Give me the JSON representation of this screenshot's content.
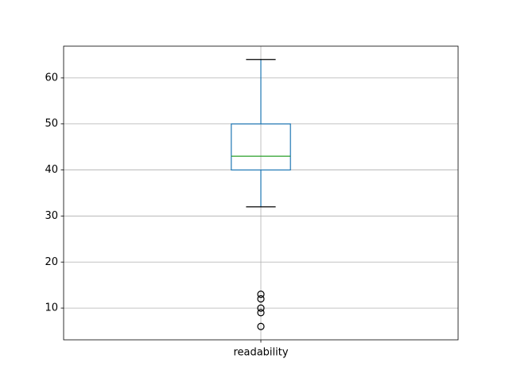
{
  "chart_data": {
    "type": "box",
    "categories": [
      "readability"
    ],
    "boxes": [
      {
        "whislo": 32,
        "q1": 40,
        "med": 43,
        "q3": 50,
        "whishi": 64,
        "fliers": [
          13,
          12,
          10,
          9,
          6
        ]
      }
    ],
    "box_color": "#1f77b4",
    "median_color": "#2ca02c",
    "cap_color": "#000000",
    "ylim": [
      3.1,
      66.9
    ],
    "yticks": [
      10,
      20,
      30,
      40,
      50,
      60
    ],
    "grid": true
  }
}
